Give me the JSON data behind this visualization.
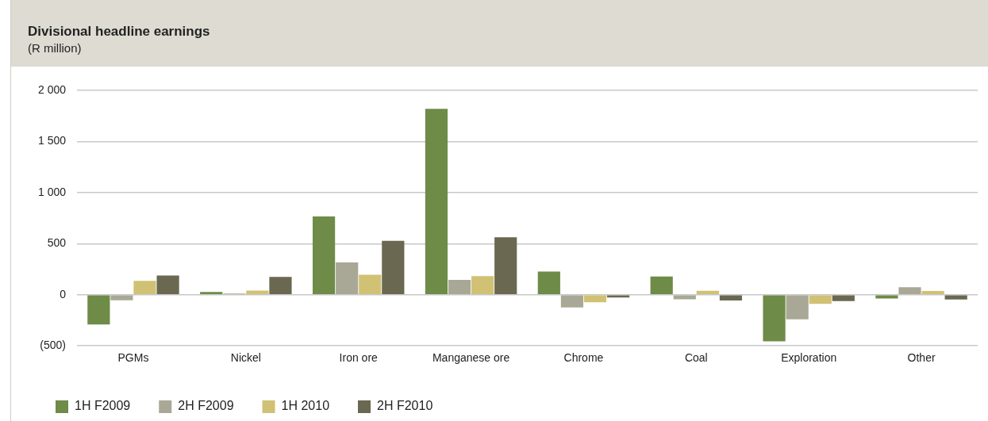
{
  "chart_data": {
    "type": "bar",
    "title": "Divisional headline earnings",
    "subtitle": "(R million)",
    "categories": [
      "PGMs",
      "Nickel",
      "Iron ore",
      "Manganese ore",
      "Chrome",
      "Coal",
      "Exploration",
      "Other"
    ],
    "series": [
      {
        "name": "1H F2009",
        "color": "#6e8b47",
        "values": [
          -290,
          28,
          767,
          1819,
          228,
          178,
          -456,
          -36
        ]
      },
      {
        "name": "2H F2009",
        "color": "#a9a896",
        "values": [
          -55,
          11,
          317,
          146,
          -124,
          -44,
          -240,
          74
        ]
      },
      {
        "name": "1H 2010",
        "color": "#d1c174",
        "values": [
          135,
          41,
          196,
          182,
          -74,
          38,
          -89,
          36
        ]
      },
      {
        "name": "2H F2010",
        "color": "#6a6850",
        "values": [
          188,
          174,
          527,
          563,
          -27,
          -56,
          -62,
          -47
        ]
      }
    ],
    "ylim": [
      -500,
      2000
    ],
    "yticks": [
      {
        "value": -500,
        "label": "(500)"
      },
      0,
      500,
      {
        "value": 1000,
        "label": "1 000"
      },
      {
        "value": 1500,
        "label": "1 500"
      },
      {
        "value": 2000,
        "label": "2 000"
      }
    ],
    "grid": "y",
    "legend": "bottom"
  }
}
